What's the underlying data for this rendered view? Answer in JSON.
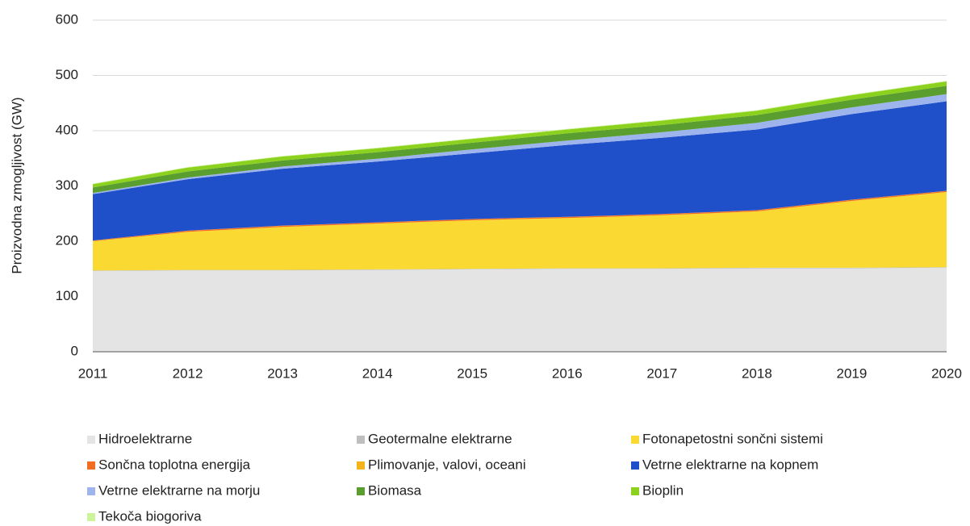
{
  "chart_data": {
    "type": "area",
    "stacked": true,
    "y_label": "Proizvodna zmogljivost (GW)",
    "categories": [
      "2011",
      "2012",
      "2013",
      "2014",
      "2015",
      "2016",
      "2017",
      "2018",
      "2019",
      "2020"
    ],
    "ylim": [
      0,
      600
    ],
    "yticks": [
      0,
      100,
      200,
      300,
      400,
      500,
      600
    ],
    "grid": true,
    "series": [
      {
        "name": "Hidroelektrarne",
        "color": "#e4e4e4",
        "values": [
          146,
          147,
          147,
          148,
          149,
          150,
          150,
          151,
          151,
          152
        ]
      },
      {
        "name": "Geotermalne elektrarne",
        "color": "#bfbfbf",
        "values": [
          1,
          1,
          1,
          1,
          1,
          1,
          1,
          1,
          1,
          1
        ]
      },
      {
        "name": "Fotonapetostni sončni sistemi",
        "color": "#f9d932",
        "values": [
          53,
          69,
          78,
          83,
          88,
          91,
          96,
          102,
          121,
          136
        ]
      },
      {
        "name": "Sončna toplotna energija",
        "color": "#f26d21",
        "values": [
          1,
          2,
          2,
          2,
          2,
          2,
          2,
          2,
          2,
          2
        ]
      },
      {
        "name": "Plimovanje, valovi, oceani",
        "color": "#f5b31b",
        "values": [
          0.2,
          0.2,
          0.2,
          0.2,
          0.2,
          0.2,
          0.2,
          0.2,
          0.2,
          0.2
        ]
      },
      {
        "name": "Vetrne elektrarne na kopnem",
        "color": "#1f4fc9",
        "values": [
          84,
          93,
          103,
          110,
          119,
          130,
          138,
          146,
          155,
          162
        ]
      },
      {
        "name": "Vetrne elektrarne na morju",
        "color": "#9db4ec",
        "values": [
          2,
          3,
          4,
          5,
          7,
          8,
          10,
          12,
          12,
          13
        ]
      },
      {
        "name": "Biomasa",
        "color": "#5a9e2f",
        "values": [
          10,
          11,
          11,
          12,
          12,
          13,
          13,
          14,
          14,
          15
        ]
      },
      {
        "name": "Bioplin",
        "color": "#8cd11e",
        "values": [
          6,
          7,
          7,
          7,
          7,
          7,
          8,
          8,
          8,
          8
        ]
      },
      {
        "name": "Tekoča biogoriva",
        "color": "#cdf39b",
        "values": [
          1,
          1,
          1,
          1,
          1,
          1,
          1,
          1,
          1,
          1
        ]
      }
    ]
  }
}
